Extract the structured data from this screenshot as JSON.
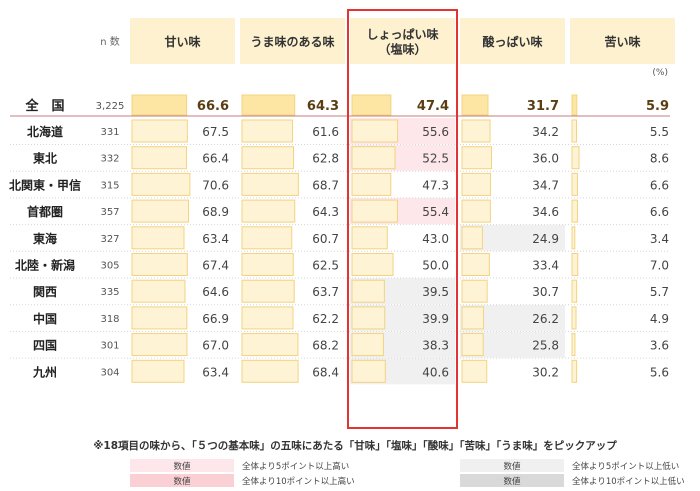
{
  "colors": {
    "header_bg": "#fdf1d0",
    "bar_fill": "#fef3d4",
    "bar_stroke": "#f3d37f",
    "bar_fill_national": "#fde6a3",
    "cell_pink_light": "#fde7ea",
    "cell_pink_dark": "#fbd0d5",
    "cell_gray_light": "#f0f0f0",
    "cell_gray_dark": "#d9d9d9",
    "highlight_border": "#e33333",
    "divider": "#c77d7d"
  },
  "n_header": "n 数",
  "percent_unit": "(%)",
  "chart_data": {
    "type": "table",
    "columns": [
      "甘い味",
      "うま味のある味",
      "しょっぱい味\n（塩味）",
      "酸っぱい味",
      "苦い味"
    ],
    "highlight_column": 2,
    "national": {
      "label": "全　国",
      "n": "3,225",
      "values": [
        66.6,
        64.3,
        47.4,
        31.7,
        5.9
      ]
    },
    "regions": [
      {
        "label": "北海道",
        "n": "331",
        "values": [
          67.5,
          61.6,
          55.6,
          34.2,
          5.5
        ]
      },
      {
        "label": "東北",
        "n": "332",
        "values": [
          66.4,
          62.8,
          52.5,
          36.0,
          8.6
        ]
      },
      {
        "label": "北関東・甲信",
        "n": "315",
        "values": [
          70.6,
          68.7,
          47.3,
          34.7,
          6.6
        ]
      },
      {
        "label": "首都圏",
        "n": "357",
        "values": [
          68.9,
          64.3,
          55.4,
          34.6,
          6.6
        ]
      },
      {
        "label": "東海",
        "n": "327",
        "values": [
          63.4,
          60.7,
          43.0,
          24.9,
          3.4
        ]
      },
      {
        "label": "北陸・新潟",
        "n": "305",
        "values": [
          67.4,
          62.5,
          50.0,
          33.4,
          7.0
        ]
      },
      {
        "label": "関西",
        "n": "335",
        "values": [
          64.6,
          63.7,
          39.5,
          30.7,
          5.7
        ]
      },
      {
        "label": "中国",
        "n": "318",
        "values": [
          66.9,
          62.2,
          39.9,
          26.2,
          4.9
        ]
      },
      {
        "label": "四国",
        "n": "301",
        "values": [
          67.0,
          68.2,
          38.3,
          25.8,
          3.6
        ]
      },
      {
        "label": "九州",
        "n": "304",
        "values": [
          63.4,
          68.4,
          40.6,
          30.2,
          5.6
        ]
      }
    ],
    "footnote": "※18項目の味から、「５つの基本味」の五味にあたる「甘味」「塩味」「酸味」「苦味」「うま味」をピックアップ",
    "legend": [
      {
        "swatch": "数値",
        "text": "全体より5ポイント以上高い",
        "color": "#fde7ea"
      },
      {
        "swatch": "数値",
        "text": "全体より10ポイント以上高い",
        "color": "#fbd0d5"
      },
      {
        "swatch": "数値",
        "text": "全体より5ポイント以上低い",
        "color": "#f0f0f0"
      },
      {
        "swatch": "数値",
        "text": "全体より10ポイント以上低い",
        "color": "#d9d9d9"
      }
    ]
  }
}
